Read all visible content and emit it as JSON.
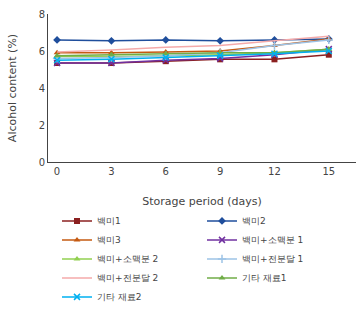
{
  "chart_data": {
    "type": "line",
    "x": [
      0,
      3,
      6,
      9,
      12,
      15
    ],
    "xlabel": "Storage period (days)",
    "ylabel": "Alcohol content (%)",
    "xlim": [
      -0.5,
      16.5
    ],
    "xticks": [
      0,
      3,
      6,
      9,
      12,
      15
    ],
    "ylim": [
      0,
      8
    ],
    "yticks": [
      0,
      2,
      4,
      6,
      8
    ],
    "grid": false,
    "legend": "bottom",
    "line_style": "solid",
    "series": [
      {
        "name": "백미1",
        "color": "#8B2020",
        "marker": "square",
        "values": [
          5.35,
          5.35,
          5.45,
          5.55,
          5.55,
          5.8
        ]
      },
      {
        "name": "백미2",
        "color": "#1F4E9C",
        "marker": "diamond",
        "values": [
          6.6,
          6.55,
          6.6,
          6.55,
          6.6,
          6.65
        ]
      },
      {
        "name": "백미3",
        "color": "#C55A11",
        "marker": "triangle",
        "values": [
          5.9,
          5.9,
          5.95,
          6.0,
          6.3,
          6.65
        ]
      },
      {
        "name": "백미+소맥분 1",
        "color": "#7030A0",
        "marker": "x",
        "values": [
          5.35,
          5.35,
          5.5,
          5.6,
          5.8,
          6.1
        ]
      },
      {
        "name": "백미+소맥분 2",
        "color": "#92D050",
        "marker": "triangle",
        "values": [
          5.7,
          5.7,
          5.75,
          5.8,
          5.9,
          6.1
        ]
      },
      {
        "name": "백미+전분달 1",
        "color": "#9DC3E6",
        "marker": "plus",
        "values": [
          5.6,
          5.65,
          5.75,
          5.9,
          6.3,
          6.6
        ]
      },
      {
        "name": "백미+전분달 2",
        "color": "#F4AAAA",
        "marker": "none",
        "values": [
          5.95,
          6.05,
          6.2,
          6.3,
          6.55,
          6.8
        ]
      },
      {
        "name": "기타 재료1",
        "color": "#70AD47",
        "marker": "triangle",
        "values": [
          5.75,
          5.8,
          5.85,
          5.9,
          5.9,
          6.1
        ]
      },
      {
        "name": "기타 재료2",
        "color": "#00B0F0",
        "marker": "x",
        "values": [
          5.5,
          5.55,
          5.65,
          5.75,
          5.85,
          6.0
        ]
      }
    ]
  }
}
